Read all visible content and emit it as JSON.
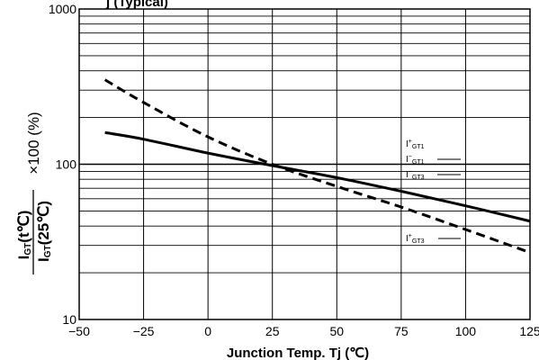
{
  "chart_data": {
    "type": "line",
    "title": "j (Typical)",
    "xlabel": "Junction Temp. Tj (℃)",
    "ylabel": {
      "symbol": "I",
      "subscript": "GT",
      "top_arg": "(t℃)",
      "bottom_arg": "(25℃)",
      "multiplier": "×100 (%)"
    },
    "xlim": [
      -50,
      125
    ],
    "ylim": [
      10,
      1000
    ],
    "y_scale": "log",
    "x_ticks": [
      -50,
      -25,
      0,
      25,
      50,
      75,
      100,
      125
    ],
    "x_tick_labels": [
      "−50",
      "−25",
      "0",
      "25",
      "50",
      "75",
      "100",
      "125"
    ],
    "y_tick_labels": [
      {
        "value": 1000,
        "label": "1000"
      },
      {
        "value": 100,
        "label": "100"
      },
      {
        "value": 10,
        "label": "10"
      }
    ],
    "grid": true,
    "series": [
      {
        "label_parts": [
          {
            "main": "I",
            "sub": "+GT1"
          },
          {
            "main": "I",
            "sub": "−GT1"
          },
          {
            "main": "I",
            "sub": "−GT3"
          }
        ],
        "style": "solid",
        "x": [
          -40,
          -25,
          0,
          25,
          50,
          75,
          100,
          125
        ],
        "y": [
          160,
          145,
          118,
          98,
          82,
          67,
          54,
          43
        ]
      },
      {
        "label_parts": [
          {
            "main": "I",
            "sub": "+GT3"
          }
        ],
        "style": "dashed",
        "x": [
          -40,
          -25,
          0,
          25,
          50,
          75,
          100,
          125
        ],
        "y": [
          350,
          250,
          150,
          100,
          72,
          53,
          38,
          27
        ]
      }
    ],
    "curve_labels": [
      {
        "main": "I",
        "sup": "+",
        "sub": "GT1"
      },
      {
        "main": "I",
        "sup": "−",
        "sub": "GT1"
      },
      {
        "main": "I",
        "sup": "−",
        "sub": "GT3"
      },
      {
        "main": "I",
        "sup": "+",
        "sub": "GT3"
      }
    ]
  }
}
